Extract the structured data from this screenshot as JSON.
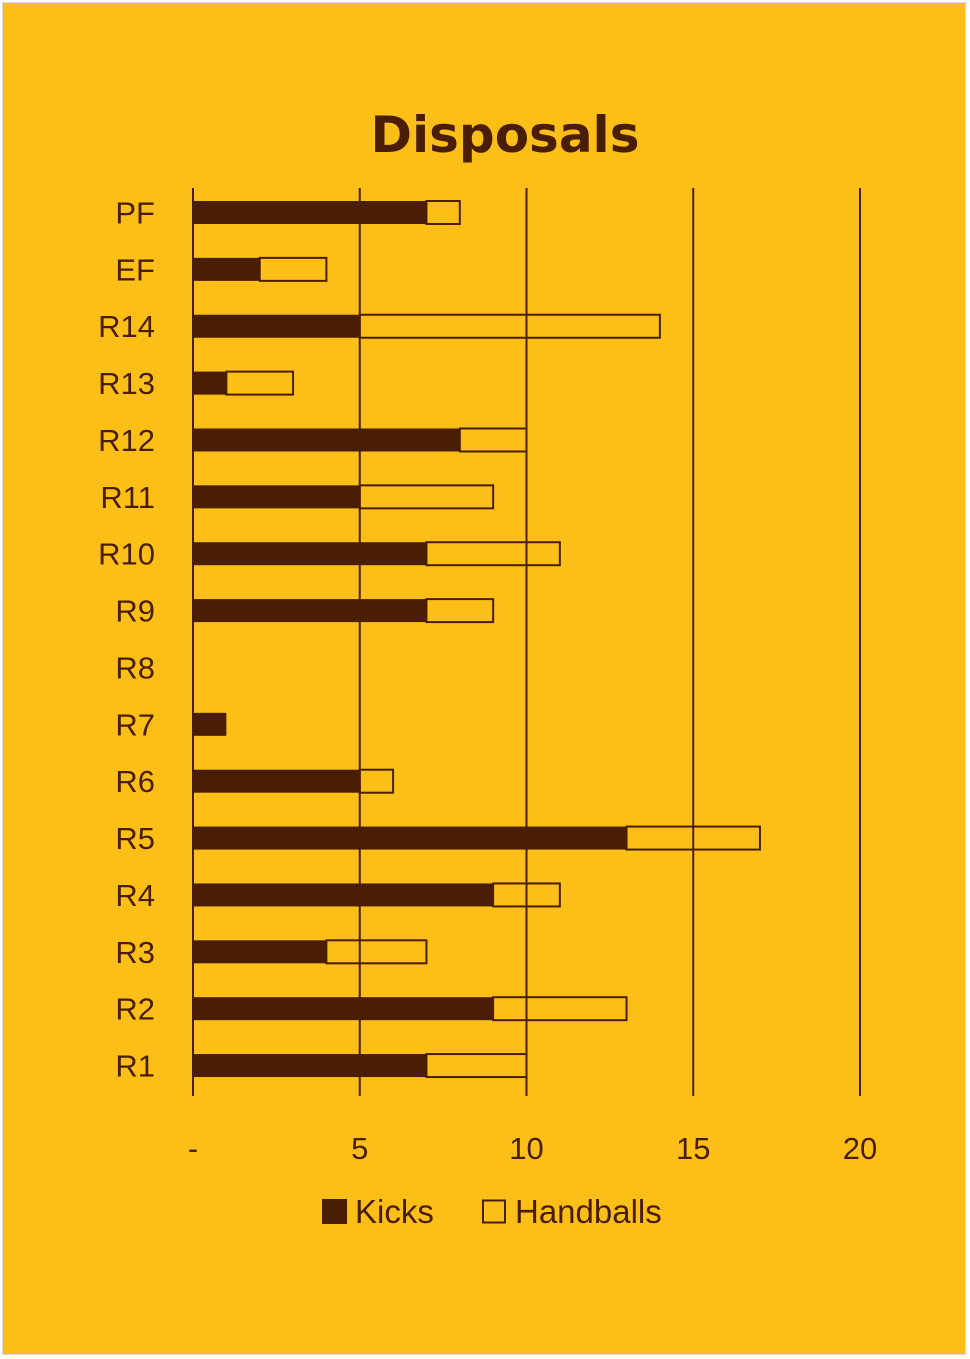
{
  "chart_data": {
    "type": "bar",
    "orientation": "horizontal",
    "stacked": true,
    "title": "Disposals",
    "categories": [
      "PF",
      "EF",
      "R14",
      "R13",
      "R12",
      "R11",
      "R10",
      "R9",
      "R8",
      "R7",
      "R6",
      "R5",
      "R4",
      "R3",
      "R2",
      "R1"
    ],
    "series": [
      {
        "name": "Kicks",
        "values": [
          7,
          2,
          5,
          1,
          8,
          5,
          7,
          7,
          0,
          1,
          5,
          13,
          9,
          4,
          9,
          7
        ],
        "color": "#4A1E05"
      },
      {
        "name": "Handballs",
        "values": [
          1,
          2,
          9,
          2,
          2,
          4,
          4,
          2,
          0,
          0,
          1,
          4,
          2,
          3,
          4,
          3
        ],
        "color": "#FCBF18"
      }
    ],
    "xlim": [
      0,
      20
    ],
    "xticks": [
      0,
      5,
      10,
      15,
      20
    ],
    "xtick_labels": [
      "-",
      "5",
      "10",
      "15",
      "20"
    ],
    "grid": "vertical",
    "legend_position": "bottom",
    "colors": {
      "background": "#FCBF18",
      "ink": "#4A1E05"
    }
  }
}
